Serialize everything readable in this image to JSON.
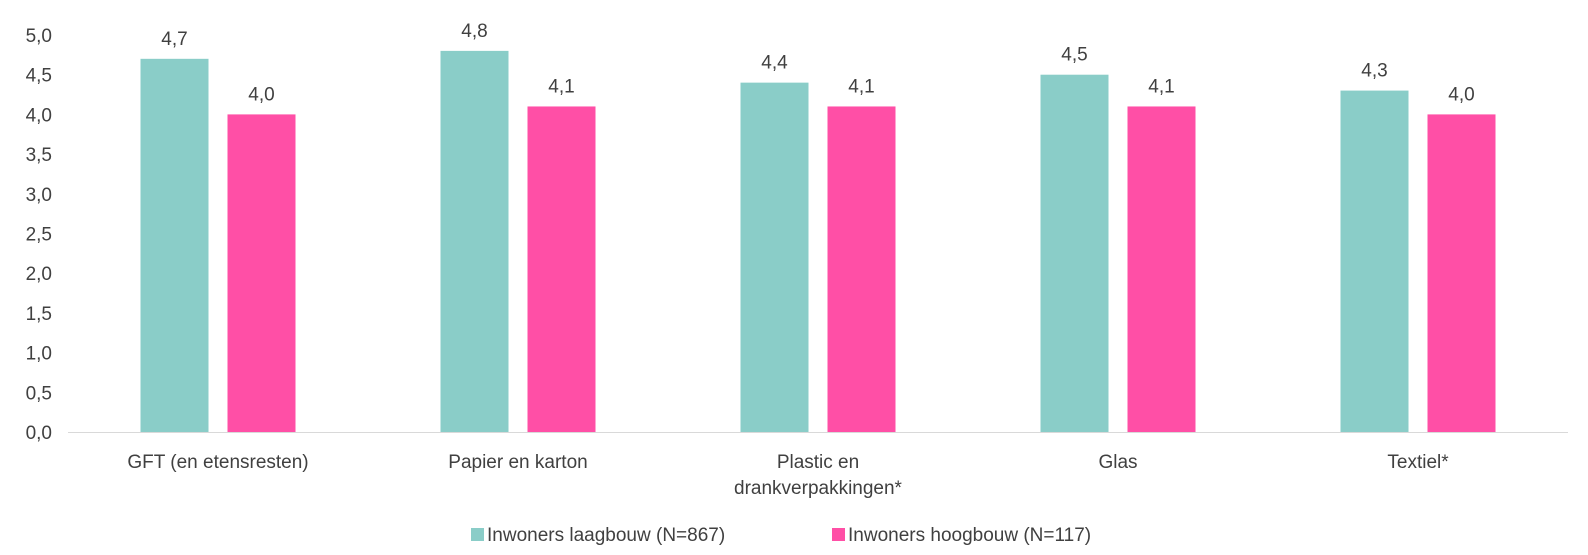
{
  "chart_data": {
    "type": "bar",
    "categories": [
      [
        "GFT (en etensresten)"
      ],
      [
        "Papier en karton"
      ],
      [
        "Plastic en",
        "drankverpakkingen*"
      ],
      [
        "Glas"
      ],
      [
        "Textiel*"
      ]
    ],
    "series": [
      {
        "name": "Inwoners laagbouw (N=867)",
        "color": "#8ACDC8",
        "values": [
          4.7,
          4.8,
          4.4,
          4.5,
          4.3
        ]
      },
      {
        "name": "Inwoners hoogbouw (N=117)",
        "color": "#FF4FA6",
        "values": [
          4.0,
          4.1,
          4.1,
          4.1,
          4.0
        ]
      }
    ],
    "data_labels": [
      [
        "4,7",
        "4,8",
        "4,4",
        "4,5",
        "4,3"
      ],
      [
        "4,0",
        "4,1",
        "4,1",
        "4,1",
        "4,0"
      ]
    ],
    "y_ticks": [
      "0,0",
      "0,5",
      "1,0",
      "1,5",
      "2,0",
      "2,5",
      "3,0",
      "3,5",
      "4,0",
      "4,5",
      "5,0"
    ],
    "ylim": [
      0,
      5
    ],
    "grid": false,
    "legend_position": "bottom"
  }
}
